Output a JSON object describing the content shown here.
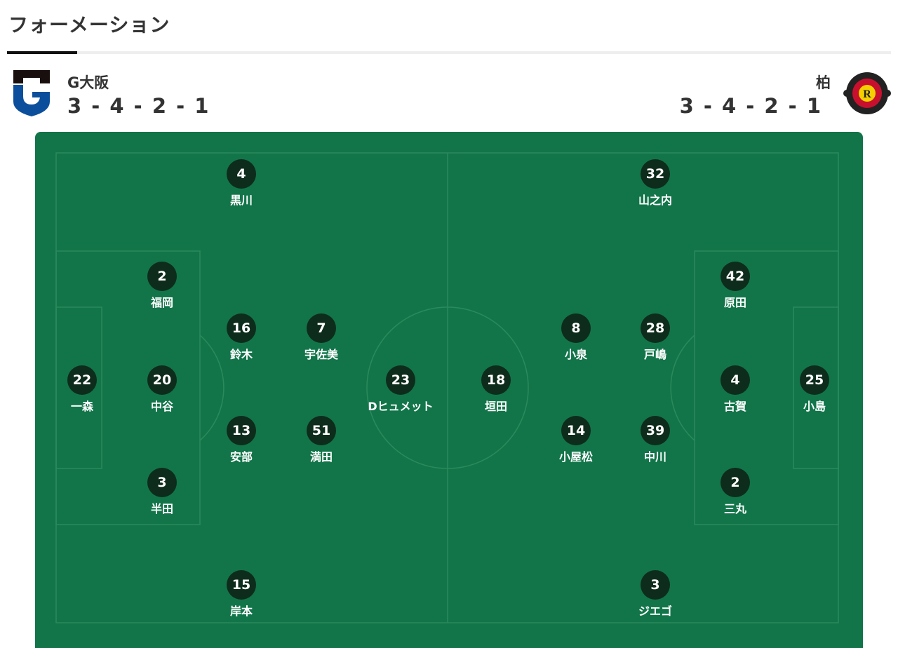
{
  "section_title": "フォーメーション",
  "home": {
    "name": "G大阪",
    "formation": "3 - 4 - 2 - 1",
    "logo": "gamba-osaka-crest",
    "players": [
      {
        "number": "22",
        "name": "一森"
      },
      {
        "number": "2",
        "name": "福岡"
      },
      {
        "number": "20",
        "name": "中谷"
      },
      {
        "number": "3",
        "name": "半田"
      },
      {
        "number": "4",
        "name": "黒川"
      },
      {
        "number": "16",
        "name": "鈴木"
      },
      {
        "number": "13",
        "name": "安部"
      },
      {
        "number": "15",
        "name": "岸本"
      },
      {
        "number": "7",
        "name": "宇佐美"
      },
      {
        "number": "51",
        "name": "満田"
      },
      {
        "number": "23",
        "name": "Dヒュメット"
      }
    ]
  },
  "away": {
    "name": "柏",
    "formation": "3 - 4 - 2 - 1",
    "logo": "kashiwa-reysol-crest",
    "logo_text": "KASHIWA REYSOL",
    "players": [
      {
        "number": "25",
        "name": "小島"
      },
      {
        "number": "42",
        "name": "原田"
      },
      {
        "number": "4",
        "name": "古賀"
      },
      {
        "number": "2",
        "name": "三丸"
      },
      {
        "number": "32",
        "name": "山之内"
      },
      {
        "number": "28",
        "name": "戸嶋"
      },
      {
        "number": "39",
        "name": "中川"
      },
      {
        "number": "3",
        "name": "ジエゴ"
      },
      {
        "number": "8",
        "name": "小泉"
      },
      {
        "number": "14",
        "name": "小屋松"
      },
      {
        "number": "18",
        "name": "垣田"
      }
    ]
  },
  "colors": {
    "pitch": "#127549",
    "player_badge": "#0e2c1b",
    "line": "#2b8a5c"
  }
}
